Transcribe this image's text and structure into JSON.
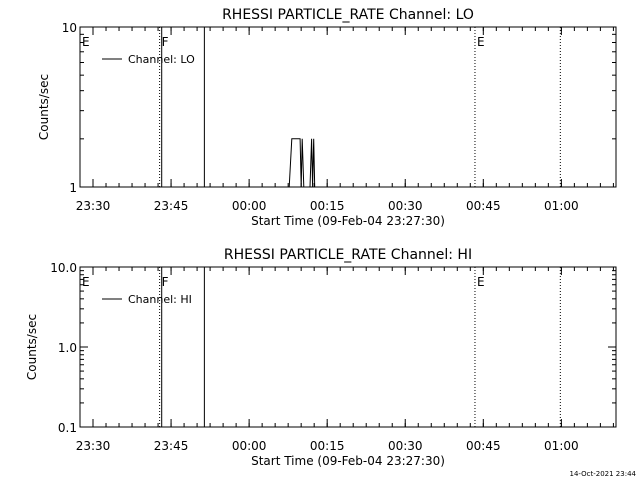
{
  "footer_timestamp": "14-Oct-2021 23:44",
  "chart_data": [
    {
      "type": "line",
      "title": "RHESSI PARTICLE_RATE Channel: LO",
      "xlabel": "Start Time (09-Feb-04 23:27:30)",
      "ylabel": "Counts/sec",
      "x_unit": "minutes since 23:27:30",
      "xlim": [
        0,
        103
      ],
      "x_ticks": [
        {
          "value": 2.5,
          "label": "23:30"
        },
        {
          "value": 17.5,
          "label": "23:45"
        },
        {
          "value": 32.5,
          "label": "00:00"
        },
        {
          "value": 47.5,
          "label": "00:15"
        },
        {
          "value": 62.5,
          "label": "00:30"
        },
        {
          "value": 77.5,
          "label": "00:45"
        },
        {
          "value": 92.5,
          "label": "01:00"
        }
      ],
      "y_scale": "log",
      "ylim": [
        1,
        10
      ],
      "y_ticks": [
        {
          "value": 1,
          "label": "1"
        },
        {
          "value": 10,
          "label": "10"
        }
      ],
      "grid": false,
      "legend": {
        "position": "top-left",
        "entries": [
          "Channel: LO"
        ]
      },
      "markers": [
        {
          "x": 0.0,
          "label": "E",
          "style": "dotted"
        },
        {
          "x": 15.3,
          "label": "F",
          "style": "dotted"
        },
        {
          "x": 15.7,
          "label": "",
          "style": "solid"
        },
        {
          "x": 23.9,
          "label": "",
          "style": "solid"
        },
        {
          "x": 75.9,
          "label": "E",
          "style": "dotted"
        },
        {
          "x": 92.3,
          "label": "",
          "style": "dotted"
        }
      ],
      "series": [
        {
          "name": "Channel: LO",
          "points": [
            [
              40.2,
              1
            ],
            [
              40.7,
              2
            ],
            [
              42.3,
              2
            ],
            [
              42.5,
              1
            ],
            [
              42.7,
              2
            ],
            [
              43.0,
              1
            ],
            [
              44.2,
              1
            ],
            [
              44.5,
              2
            ],
            [
              44.7,
              1
            ],
            [
              44.9,
              2
            ],
            [
              45.1,
              1
            ]
          ]
        }
      ]
    },
    {
      "type": "line",
      "title": "RHESSI PARTICLE_RATE Channel: HI",
      "xlabel": "Start Time (09-Feb-04 23:27:30)",
      "ylabel": "Counts/sec",
      "x_unit": "minutes since 23:27:30",
      "xlim": [
        0,
        103
      ],
      "x_ticks": [
        {
          "value": 2.5,
          "label": "23:30"
        },
        {
          "value": 17.5,
          "label": "23:45"
        },
        {
          "value": 32.5,
          "label": "00:00"
        },
        {
          "value": 47.5,
          "label": "00:15"
        },
        {
          "value": 62.5,
          "label": "00:30"
        },
        {
          "value": 77.5,
          "label": "00:45"
        },
        {
          "value": 92.5,
          "label": "01:00"
        }
      ],
      "y_scale": "log",
      "ylim": [
        0.1,
        10
      ],
      "y_ticks": [
        {
          "value": 0.1,
          "label": "0.1"
        },
        {
          "value": 1,
          "label": "1.0"
        },
        {
          "value": 10,
          "label": "10.0"
        }
      ],
      "grid": false,
      "legend": {
        "position": "top-left",
        "entries": [
          "Channel: HI"
        ]
      },
      "markers": [
        {
          "x": 0.0,
          "label": "E",
          "style": "dotted"
        },
        {
          "x": 15.3,
          "label": "F",
          "style": "dotted"
        },
        {
          "x": 15.7,
          "label": "",
          "style": "solid"
        },
        {
          "x": 23.9,
          "label": "",
          "style": "solid"
        },
        {
          "x": 75.9,
          "label": "E",
          "style": "dotted"
        },
        {
          "x": 92.3,
          "label": "",
          "style": "dotted"
        }
      ],
      "series": [
        {
          "name": "Channel: HI",
          "points": []
        }
      ]
    }
  ]
}
